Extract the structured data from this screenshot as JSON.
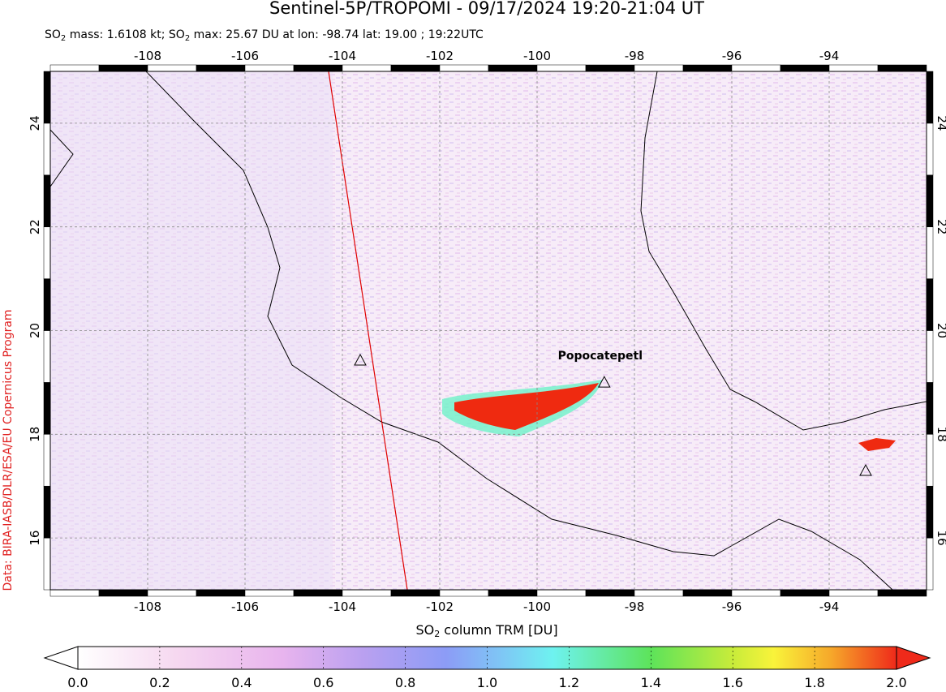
{
  "title": "Sentinel-5P/TROPOMI - 09/17/2024 19:20-21:04 UT",
  "subtitle": [
    "SO",
    "2",
    " mass: 1.6108 kt; SO",
    "2",
    " max: 25.67 DU at lon: -98.74 lat: 19.00 ; 19:22UTC"
  ],
  "credit": "Data: BIRA-IASB/DLR/ESA/EU Copernicus Program",
  "map": {
    "lonlim": [
      -110,
      -92
    ],
    "latlim": [
      15,
      25
    ],
    "lonticks": [
      -108,
      -106,
      -104,
      -102,
      -100,
      -98,
      -96,
      -94
    ],
    "latticks": [
      16,
      18,
      20,
      22,
      24
    ],
    "annotations": [
      {
        "text": "Popocatepetl",
        "lon": -98.62,
        "lat": 19.02
      }
    ]
  },
  "colorbar": {
    "label": [
      "SO",
      "2",
      " column TRM [DU]"
    ],
    "lim": [
      0,
      2
    ],
    "ticks": [
      {
        "value": 0,
        "label": "0.0"
      },
      {
        "value": 0.2,
        "label": "0.2"
      },
      {
        "value": 0.4,
        "label": "0.4"
      },
      {
        "value": 0.6,
        "label": "0.6"
      },
      {
        "value": 0.8,
        "label": "0.8"
      },
      {
        "value": 1,
        "label": "1.0"
      },
      {
        "value": 1.2,
        "label": "1.2"
      },
      {
        "value": 1.4,
        "label": "1.4"
      },
      {
        "value": 1.6,
        "label": "1.6"
      },
      {
        "value": 1.8,
        "label": "1.8"
      },
      {
        "value": 2,
        "label": "2.0"
      }
    ]
  }
}
